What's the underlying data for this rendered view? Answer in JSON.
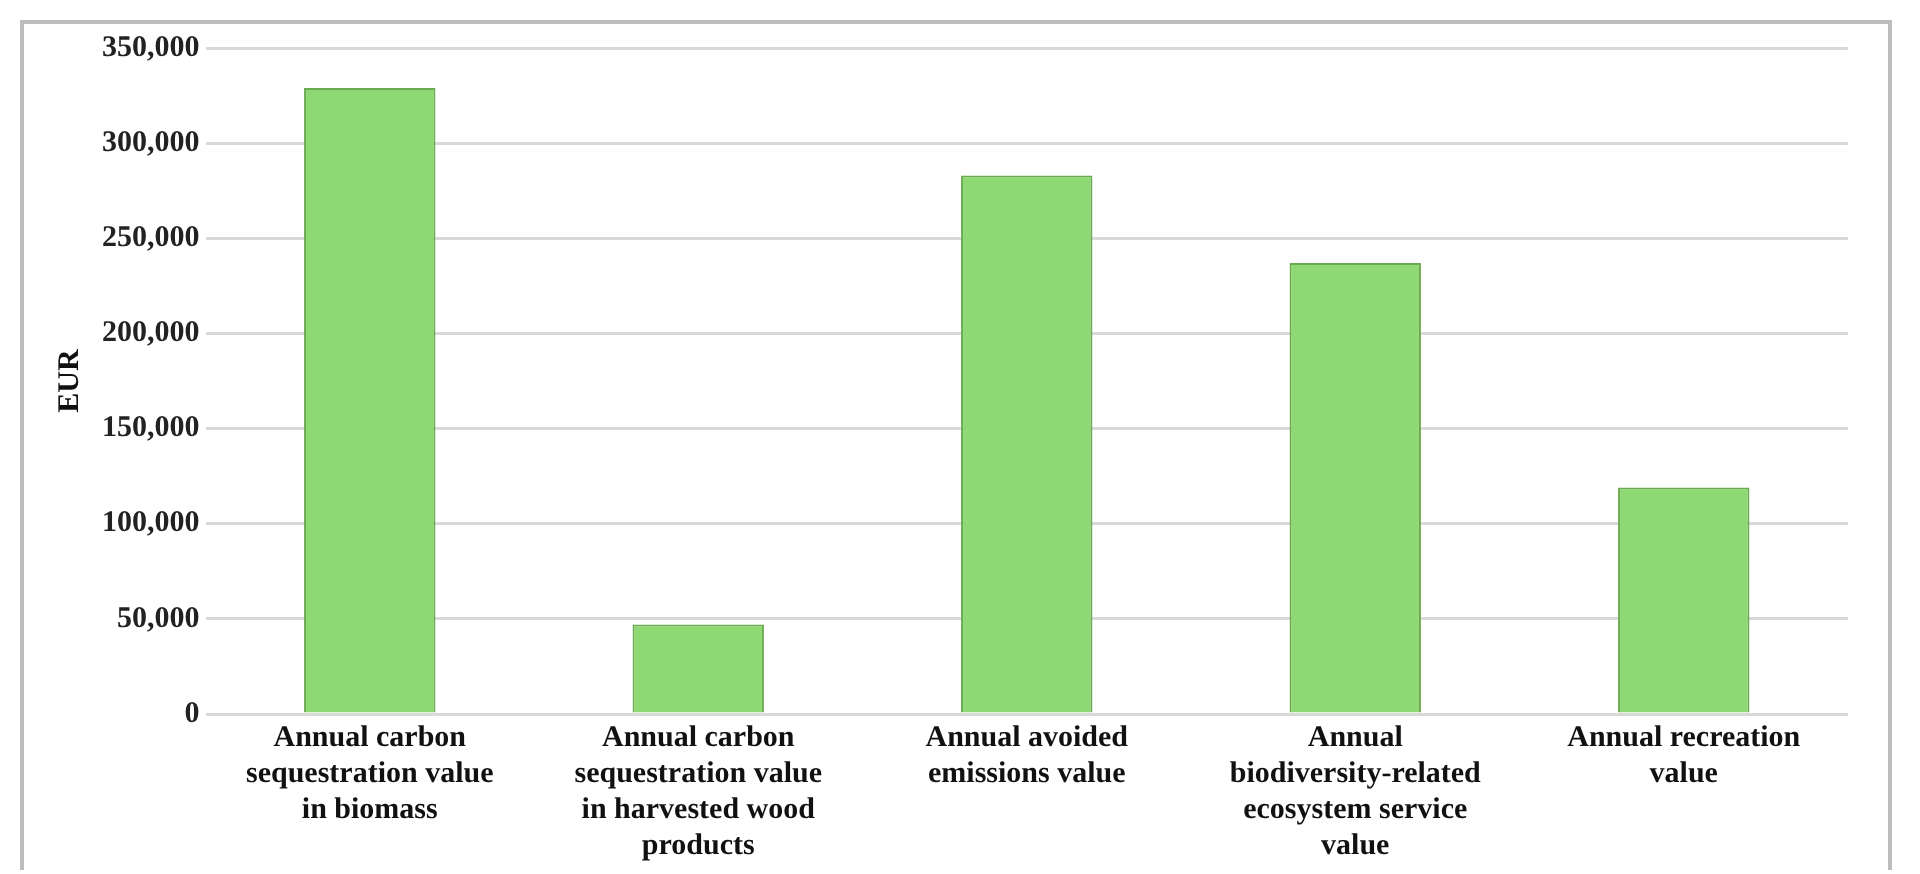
{
  "chart_data": {
    "type": "bar",
    "ylabel": "EUR",
    "categories": [
      "Annual carbon sequestration value in biomass",
      "Annual carbon sequestration value in harvested wood products",
      "Annual avoided emissions value",
      "Annual biodiversity-related ecosystem service value",
      "Annual recreation value"
    ],
    "values": [
      329000,
      47000,
      283000,
      237000,
      119000
    ],
    "color": "#8fd974",
    "ylim": [
      0,
      350000
    ],
    "yticks": [
      0,
      {
        "value": 50000,
        "label": "50,000"
      },
      {
        "value": 100000,
        "label": "100,000"
      },
      {
        "value": 150000,
        "label": "150,000"
      },
      {
        "value": 200000,
        "label": "200,000"
      },
      {
        "value": 250000,
        "label": "250,000"
      },
      {
        "value": 300000,
        "label": "300,000"
      },
      {
        "value": 350000,
        "label": "350,000"
      }
    ],
    "grid": "y",
    "legend": false
  }
}
